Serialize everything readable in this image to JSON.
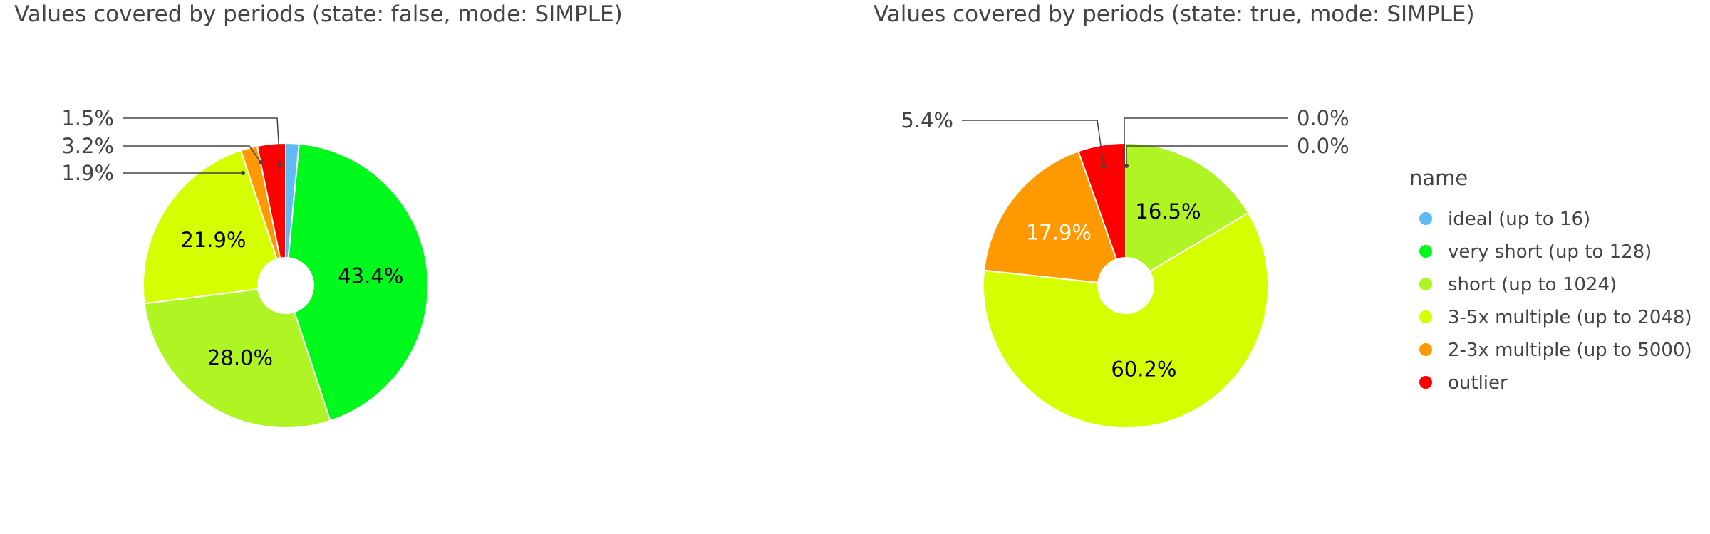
{
  "legend": {
    "title": "name",
    "items": [
      {
        "label": "ideal (up to 16)",
        "color": "#5fb9f5"
      },
      {
        "label": "very short (up to 128)",
        "color": "#00f91c"
      },
      {
        "label": "short (up to 1024)",
        "color": "#aff523"
      },
      {
        "label": "3-5x multiple (up to 2048)",
        "color": "#d5fe00"
      },
      {
        "label": "2-3x multiple (up to 5000)",
        "color": "#ff9900"
      },
      {
        "label": "outlier",
        "color": "#ff0000"
      }
    ]
  },
  "chart_data": [
    {
      "type": "pie",
      "hole": true,
      "title": "Values covered by periods (state: false, mode: SIMPLE)",
      "labels": [
        "ideal (up to 16)",
        "very short (up to 128)",
        "short (up to 1024)",
        "3-5x multiple (up to 2048)",
        "2-3x multiple (up to 5000)",
        "outlier"
      ],
      "values": [
        1.5,
        43.4,
        28.0,
        21.9,
        1.9,
        3.2
      ],
      "display_labels": [
        "1.5%",
        "43.4%",
        "28.0%",
        "21.9%",
        "1.9%",
        "3.2%"
      ],
      "colors": [
        "#5fb9f5",
        "#00f91c",
        "#aff523",
        "#d5fe00",
        "#ff9900",
        "#ff0000"
      ],
      "label_text_colors": [
        "#444444",
        "#000000",
        "#000000",
        "#000000",
        "#444444",
        "#444444"
      ]
    },
    {
      "type": "pie",
      "hole": true,
      "title": "Values covered by periods (state: true, mode: SIMPLE)",
      "labels": [
        "ideal (up to 16)",
        "very short (up to 128)",
        "short (up to 1024)",
        "3-5x multiple (up to 2048)",
        "2-3x multiple (up to 5000)",
        "outlier"
      ],
      "values": [
        0.0,
        0.0,
        16.5,
        60.2,
        17.9,
        5.4
      ],
      "display_labels": [
        "0.0%",
        "0.0%",
        "16.5%",
        "60.2%",
        "17.9%",
        "5.4%"
      ],
      "colors": [
        "#5fb9f5",
        "#00f91c",
        "#aff523",
        "#d5fe00",
        "#ff9900",
        "#ff0000"
      ],
      "label_text_colors": [
        "#444444",
        "#444444",
        "#000000",
        "#000000",
        "#ffffff",
        "#444444"
      ]
    }
  ]
}
